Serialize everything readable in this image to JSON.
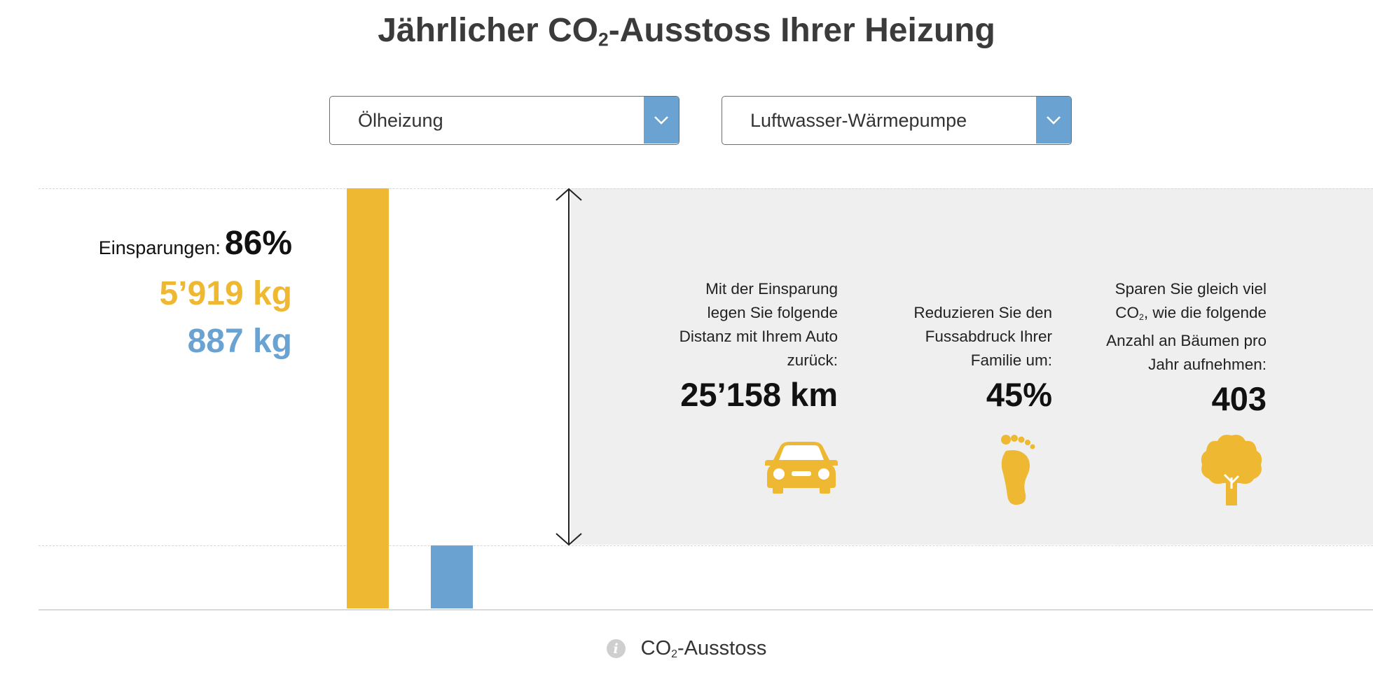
{
  "header": {
    "title_pre": "Jährlicher CO",
    "title_sub": "2",
    "title_post": "-Ausstoss Ihrer Heizung"
  },
  "selectors": {
    "current": {
      "value": "Ölheizung",
      "icon": "chevron-down-icon"
    },
    "alternative": {
      "value": "Luftwasser-Wärmepumpe",
      "icon": "chevron-down-icon"
    }
  },
  "summary": {
    "savings_label": "Einsparungen:",
    "savings_value": "86%",
    "value_a": "5’919 kg",
    "value_b": "887 kg"
  },
  "stats": [
    {
      "lines": [
        "Mit der Einsparung",
        "legen Sie folgende",
        "Distanz mit Ihrem Auto",
        "zurück:"
      ],
      "value": "25’158 km",
      "icon": "car-icon"
    },
    {
      "lines": [
        "Reduzieren Sie den",
        "Fussabdruck Ihrer",
        "Familie um:"
      ],
      "value": "45%",
      "icon": "footprint-icon"
    },
    {
      "lines_html_sub": true,
      "line1": "Sparen Sie gleich viel",
      "line2_pre": "CO",
      "line2_sub": "2",
      "line2_post": ", wie die folgende",
      "line3": "Anzahl an Bäumen pro",
      "line4": "Jahr aufnehmen:",
      "value": "403",
      "icon": "tree-icon"
    }
  ],
  "legend": {
    "label_pre": "CO",
    "label_sub": "2",
    "label_post": "-Ausstoss",
    "icon": "info-icon"
  },
  "colors": {
    "current": "#EEB833",
    "alternative": "#6AA2D1",
    "panel": "#EFEFEF"
  },
  "chart_data": {
    "type": "bar",
    "categories": [
      "Ölheizung",
      "Luftwasser-Wärmepumpe"
    ],
    "values": [
      5919,
      887
    ],
    "unit": "kg",
    "title": "Jährlicher CO2-Ausstoss Ihrer Heizung",
    "xlabel": "",
    "ylabel": "CO2-Ausstoss",
    "ylim": [
      0,
      5919
    ],
    "savings_percent": 86,
    "grid": "dashed reference lines at top value and alternative value",
    "legend": "bottom-center"
  }
}
